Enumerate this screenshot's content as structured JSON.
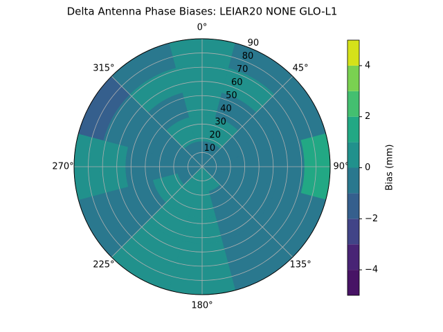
{
  "chart_data": {
    "type": "polar_contour",
    "title": "Delta Antenna Phase Biases: LEIAR20         NONE GLO-L1",
    "azimuths": [
      0,
      30,
      60,
      90,
      120,
      150,
      180,
      210,
      240,
      270,
      300,
      330
    ],
    "zenith": [
      9,
      27,
      45,
      63,
      81
    ],
    "values": [
      [
        -0.5,
        -0.5,
        -0.5,
        -0.5,
        -0.5,
        0.5,
        0.5,
        0.5,
        -0.5,
        -0.5,
        -0.5,
        -0.5
      ],
      [
        0.5,
        0.5,
        -0.5,
        -0.5,
        -0.5,
        -0.5,
        0.5,
        0.5,
        0.5,
        -0.5,
        -0.5,
        0.5
      ],
      [
        0.5,
        -0.5,
        -0.5,
        -0.5,
        -0.5,
        -0.5,
        0.5,
        0.5,
        -0.5,
        -0.5,
        -0.5,
        -0.5
      ],
      [
        0.5,
        0.5,
        -0.5,
        -0.5,
        -0.5,
        -0.5,
        0.5,
        0.5,
        -0.5,
        0.5,
        -0.5,
        0.5
      ],
      [
        0.5,
        -0.5,
        -0.5,
        1.5,
        -0.5,
        -0.5,
        0.5,
        0.5,
        -0.5,
        0.5,
        -1.5,
        -0.5
      ]
    ],
    "rlim": [
      0,
      90
    ],
    "rticks": [
      10,
      20,
      30,
      40,
      50,
      60,
      70,
      80,
      90
    ],
    "thetaticks": [
      {
        "value": 0,
        "label": "0°"
      },
      {
        "value": 45,
        "label": "45°"
      },
      {
        "value": 90,
        "label": "90°"
      },
      {
        "value": 135,
        "label": "135°"
      },
      {
        "value": 180,
        "label": "180°"
      },
      {
        "value": 225,
        "label": "225°"
      },
      {
        "value": 270,
        "label": "270°"
      },
      {
        "value": 315,
        "label": "315°"
      }
    ],
    "levels": [
      -5,
      -4,
      -3,
      -2,
      -1,
      0,
      1,
      2,
      3,
      4,
      5
    ],
    "colors": [
      "#471365",
      "#482475",
      "#414487",
      "#355f8d",
      "#2a788e",
      "#21918c",
      "#22a884",
      "#44bf70",
      "#7ad151",
      "#d5e21a"
    ],
    "colorbar_label": "Bias (mm)",
    "clim": [
      -5,
      5
    ],
    "cticks": [
      {
        "value": -4,
        "label": "−4"
      },
      {
        "value": -2,
        "label": "−2"
      },
      0,
      2,
      4
    ],
    "grid": true
  }
}
